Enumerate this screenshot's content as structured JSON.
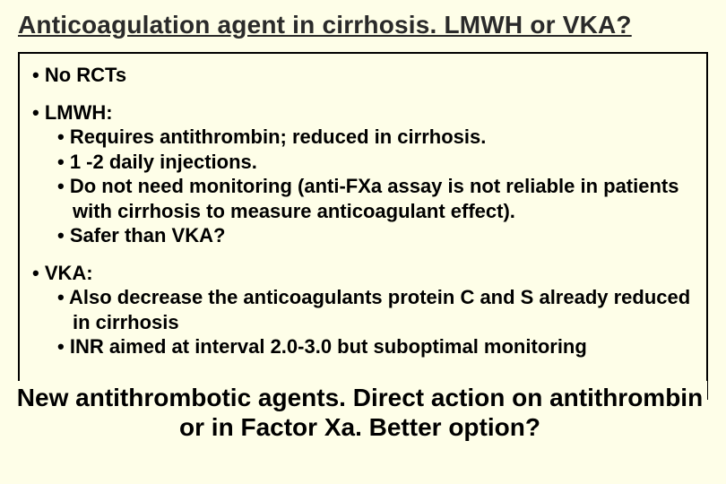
{
  "title": "Anticoagulation agent in cirrhosis. LMWH or VKA?",
  "colors": {
    "background": "#fefee8",
    "text": "#000000",
    "border": "#000000",
    "title_text": "#2a2a2a"
  },
  "typography": {
    "title_fontsize": 28,
    "body_fontsize": 22,
    "banner_fontsize": 28,
    "font_family": "Arial",
    "weight": "bold"
  },
  "sections": [
    {
      "heading": "No RCTs",
      "items": []
    },
    {
      "heading": "LMWH:",
      "items": [
        "Requires antithrombin; reduced in cirrhosis.",
        "1 -2 daily injections.",
        "Do not need monitoring (anti-FXa assay is not reliable in patients with cirrhosis to measure anticoagulant effect).",
        "Safer than VKA?"
      ]
    },
    {
      "heading": "VKA:",
      "items": [
        "Also decrease the anticoagulants protein C and S already reduced in cirrhosis",
        "INR aimed at interval 2.0-3.0 but suboptimal monitoring"
      ]
    }
  ],
  "banner": "New antithrombotic agents. Direct action on antithrombin or in Factor Xa. Better option?"
}
